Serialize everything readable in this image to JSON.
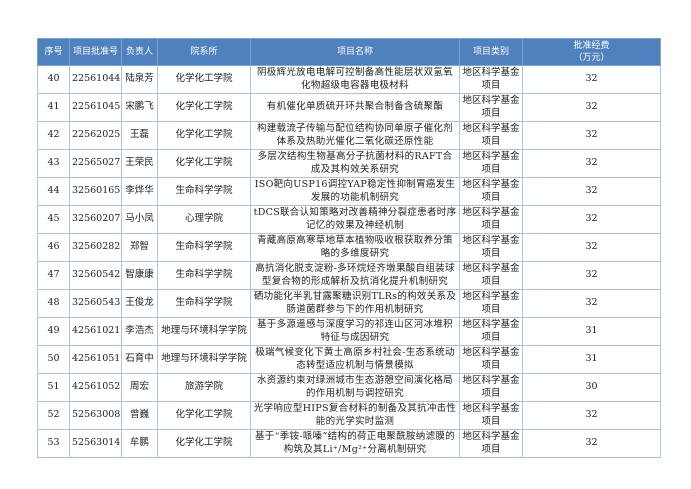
{
  "headers": [
    "序号",
    "项目批准号",
    "负责人",
    "院系所",
    "项目名称",
    "项目类别",
    "批准经费（万元）"
  ],
  "header_fee_line1": "批准经费",
  "header_fee_line2": "（万元）",
  "header_color": "#4f81bd",
  "rows": [
    {
      "no": "40",
      "id": "22561044",
      "pi": "陆泉芳",
      "dept": "化学化工学院",
      "name": "阴极辉光放电电解可控制备高性能层状双氢氧化物超级电容器电极材料",
      "type": "地区科学基金项目",
      "fee": "32"
    },
    {
      "no": "41",
      "id": "22561045",
      "pi": "宋鹏飞",
      "dept": "化学化工学院",
      "name": "有机催化单质硫开环共聚合制备含硫聚酯",
      "type": "地区科学基金项目",
      "fee": "32"
    },
    {
      "no": "42",
      "id": "22562025",
      "pi": "王磊",
      "dept": "化学化工学院",
      "name": "构建载流子传输与配位结构协同单原子催化剂体系及热助光催化二氧化碳还原性能",
      "type": "地区科学基金项目",
      "fee": "32"
    },
    {
      "no": "43",
      "id": "22565027",
      "pi": "王荣民",
      "dept": "化学化工学院",
      "name": "多层次结构生物基高分子抗菌材料的RAFT合成及其构效关系研究",
      "type": "地区科学基金项目",
      "fee": "32"
    },
    {
      "no": "44",
      "id": "32560165",
      "pi": "李烨华",
      "dept": "生命科学学院",
      "name": "ISO靶向USP16调控YAP稳定性抑制胃癌发生发展的功能机制研究",
      "type": "地区科学基金项目",
      "fee": "32"
    },
    {
      "no": "45",
      "id": "32560207",
      "pi": "马小凤",
      "dept": "心理学院",
      "name": "tDCS联合认知策略对改善精神分裂症患者时序记忆的效果及神经机制",
      "type": "地区科学基金项目",
      "fee": "32"
    },
    {
      "no": "46",
      "id": "32560282",
      "pi": "郑智",
      "dept": "生命科学学院",
      "name": "青藏高原高寒草地草本植物吸收根获取养分策略的多维度研究",
      "type": "地区科学基金项目",
      "fee": "32"
    },
    {
      "no": "47",
      "id": "32560542",
      "pi": "智康康",
      "dept": "生命科学学院",
      "name": "高抗消化脱支淀粉-多环烷烃齐墩果酸自组装球型复合物的形成解析及抗消化提升机制研究",
      "type": "地区科学基金项目",
      "fee": "32"
    },
    {
      "no": "48",
      "id": "32560543",
      "pi": "王俊龙",
      "dept": "生命科学学院",
      "name": "硒功能化半乳甘露聚糖识别TLRs的构效关系及肠道菌群参与下的作用机制研究",
      "type": "地区科学基金项目",
      "fee": "32"
    },
    {
      "no": "49",
      "id": "42561021",
      "pi": "李浩杰",
      "dept": "地理与环境科学学院",
      "name": "基于多源遥感与深度学习的祁连山区河冰堆积特征与成因研究",
      "type": "地区科学基金项目",
      "fee": "31"
    },
    {
      "no": "50",
      "id": "42561051",
      "pi": "石育中",
      "dept": "地理与环境科学学院",
      "name": "极端气候变化下黄土高原乡村社会-生态系统动态转型适应机制与情景模拟",
      "type": "地区科学基金项目",
      "fee": "31"
    },
    {
      "no": "51",
      "id": "42561052",
      "pi": "周宏",
      "dept": "旅游学院",
      "name": "水资源约束对绿洲城市生态游憩空间演化格局的作用机制与调控研究",
      "type": "地区科学基金项目",
      "fee": "30"
    },
    {
      "no": "52",
      "id": "52563008",
      "pi": "曾巍",
      "dept": "化学化工学院",
      "name": "光学响应型HIPS复合材料的制备及其抗冲击性能的光学实时监测",
      "type": "地区科学基金项目",
      "fee": "32"
    },
    {
      "no": "53",
      "id": "52563014",
      "pi": "牟鹏",
      "dept": "化学化工学院",
      "name": "基于“季铵-哌嗪”结构的荷正电聚酰胺纳滤膜的构筑及其Li⁺/Mg²⁺分离机制研究",
      "type": "地区科学基金项目",
      "fee": "32"
    }
  ]
}
